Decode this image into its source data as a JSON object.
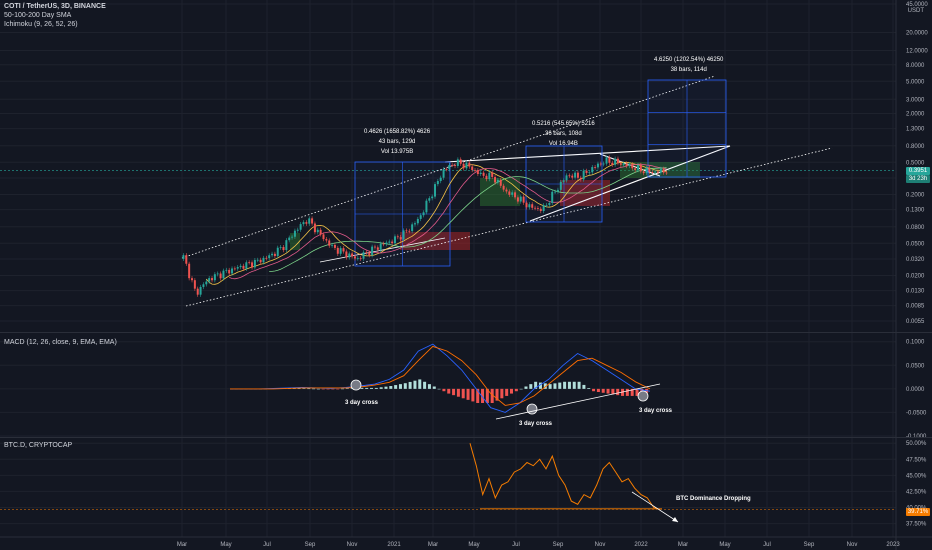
{
  "header": {
    "symbol_line": "COTI / TetherUS, 3D, BINANCE",
    "indicator_sma": "50-100-200 Day SMA",
    "indicator_ichimoku": "Ichimoku (9, 26, 52, 26)",
    "currency": "USDT"
  },
  "macd_pane": {
    "title": "MACD (12, 26, close, 9, EMA, EMA)"
  },
  "btcd_pane": {
    "title": "BTC.D, CRYPTOCAP"
  },
  "annotations": {
    "box1": {
      "line1": "0.4626 (1658.82%) 4626",
      "line2": "43 bars, 129d",
      "line3": "Vol 13.975B"
    },
    "box2": {
      "line1": "0.5216 (545.65%) 5216",
      "line2": "36 bars, 108d",
      "line3": "Vol 16.94B"
    },
    "box3": {
      "line1": "4.6250 (1202.54%) 46250",
      "line2": "38 bars, 114d"
    },
    "cross_labels": [
      "3 day cross",
      "3 day cross",
      "3 day cross"
    ],
    "btc_dominance": "BTC Dominance Dropping"
  },
  "price_tags": {
    "coti_a": "0.3951",
    "coti_b": "3d 23h",
    "btcd": "39.71%"
  },
  "chart_data": [
    {
      "type": "candlestick",
      "title": "COTI / TetherUS, 3D, BINANCE",
      "scale": "log",
      "x_ticks": [
        "Mar",
        "May",
        "Jul",
        "Sep",
        "Nov",
        "2021",
        "Mar",
        "May",
        "Jul",
        "Sep",
        "Nov",
        "2022",
        "Mar",
        "May",
        "Jul",
        "Sep",
        "Nov",
        "2023"
      ],
      "y_ticks": [
        "0.0055",
        "0.0085",
        "0.0130",
        "0.0200",
        "0.0320",
        "0.0500",
        "0.0800",
        "0.1300",
        "0.2000",
        "0.3200",
        "0.5000",
        "0.8000",
        "1.3000",
        "2.0000",
        "3.0000",
        "5.0000",
        "8.0000",
        "12.0000",
        "20.0000",
        "45.0000"
      ],
      "last_price": 0.3951,
      "close_approx": [
        0.034,
        0.012,
        0.018,
        0.021,
        0.024,
        0.027,
        0.03,
        0.035,
        0.045,
        0.07,
        0.1,
        0.065,
        0.045,
        0.038,
        0.032,
        0.04,
        0.048,
        0.055,
        0.07,
        0.1,
        0.2,
        0.4,
        0.5,
        0.45,
        0.35,
        0.33,
        0.22,
        0.18,
        0.14,
        0.13,
        0.22,
        0.35,
        0.33,
        0.42,
        0.52,
        0.5,
        0.45,
        0.4,
        0.38,
        0.3951
      ]
    },
    {
      "type": "histogram+line",
      "title": "MACD (12, 26, close, 9, EMA, EMA)",
      "y_ticks": [
        "-0.1000",
        "-0.0500",
        "0.0000",
        "0.0500",
        "0.1000"
      ],
      "series": [
        {
          "values": [
            0,
            0,
            0,
            0.001,
            0.002,
            0.003,
            0.002,
            0.001,
            0.003,
            0.006,
            0.01,
            0.02,
            0.04,
            0.08,
            0.095,
            0.07,
            0.04,
            0.0,
            -0.04,
            -0.05,
            -0.03,
            0.0,
            0.02,
            0.05,
            0.075,
            0.06,
            0.04,
            0.02,
            0.0,
            -0.005
          ]
        },
        {
          "values": [
            0,
            0,
            0,
            0.0,
            0.001,
            0.002,
            0.002,
            0.002,
            0.002,
            0.004,
            0.008,
            0.014,
            0.028,
            0.06,
            0.09,
            0.08,
            0.06,
            0.03,
            -0.01,
            -0.035,
            -0.03,
            -0.015,
            0.01,
            0.035,
            0.06,
            0.065,
            0.05,
            0.035,
            0.015,
            0.0
          ]
        }
      ]
    },
    {
      "type": "line",
      "title": "BTC.D, CRYPTOCAP",
      "y_ticks": [
        "37.50%",
        "40.00%",
        "42.50%",
        "45.00%",
        "47.50%",
        "50.00%"
      ],
      "last_value": 39.71,
      "values": [
        50.0,
        46.5,
        42.0,
        44.5,
        41.5,
        43.5,
        44.0,
        45.5,
        46.0,
        47.0,
        46.5,
        47.5,
        46.0,
        48.0,
        45.0,
        43.5,
        41.0,
        40.5,
        42.0,
        41.5,
        43.5,
        46.0,
        47.0,
        45.5,
        44.0,
        44.5,
        43.0,
        42.0,
        41.5,
        40.0,
        39.71
      ]
    }
  ]
}
